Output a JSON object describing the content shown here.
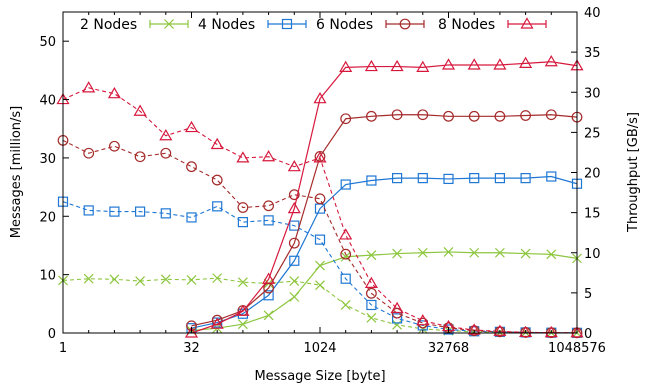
{
  "chart_data": {
    "type": "line",
    "title": "",
    "xlabel": "Message Size [byte]",
    "ylabel": "Messages [million/s]",
    "y2label": "Throughput [GB/s]",
    "x_scale": "log2",
    "xlim": [
      1,
      1048576
    ],
    "ylim": [
      0,
      55
    ],
    "y2lim": [
      0,
      40
    ],
    "x_ticks": [
      1,
      32,
      1024,
      32768,
      1048576
    ],
    "x_tick_labels": [
      "1",
      "32",
      "1024",
      "32768",
      "1048576"
    ],
    "y_ticks": [
      0,
      10,
      20,
      30,
      40,
      50
    ],
    "y2_ticks": [
      0,
      5,
      10,
      15,
      20,
      25,
      30,
      35,
      40
    ],
    "legend_position": "top",
    "grid": false,
    "x": [
      1,
      2,
      4,
      8,
      16,
      32,
      64,
      128,
      256,
      512,
      1024,
      2048,
      4096,
      8192,
      16384,
      32768,
      65536,
      131072,
      262144,
      524288,
      1048576
    ],
    "series": [
      {
        "name": "2 Nodes",
        "color": "#8dc63f",
        "marker": "x",
        "rate": [
          9.0,
          9.3,
          9.2,
          8.9,
          9.2,
          9.1,
          9.4,
          8.7,
          8.5,
          8.9,
          8.2,
          4.8,
          2.6,
          1.4,
          0.7,
          0.4,
          0.2,
          0.1,
          0.1,
          0.05,
          0.03
        ],
        "throughput": [
          null,
          null,
          null,
          null,
          null,
          0.3,
          0.6,
          1.1,
          2.2,
          4.5,
          8.4,
          9.5,
          9.7,
          9.9,
          10.0,
          10.1,
          10.0,
          10.0,
          9.9,
          9.8,
          9.3
        ]
      },
      {
        "name": "4 Nodes",
        "color": "#1f77d4",
        "marker": "square",
        "rate": [
          22.5,
          21.0,
          20.8,
          20.8,
          20.5,
          19.8,
          21.7,
          19.0,
          19.3,
          18.4,
          16.0,
          9.3,
          4.8,
          2.5,
          1.3,
          0.6,
          0.3,
          0.2,
          0.1,
          0.05,
          0.03
        ],
        "throughput": [
          null,
          null,
          null,
          null,
          null,
          0.6,
          1.3,
          2.4,
          4.7,
          9.0,
          15.5,
          18.5,
          19.0,
          19.3,
          19.3,
          19.2,
          19.3,
          19.3,
          19.3,
          19.5,
          18.6
        ]
      },
      {
        "name": "6 Nodes",
        "color": "#a52a2a",
        "marker": "circle",
        "rate": [
          33.0,
          30.8,
          32.0,
          30.2,
          30.8,
          28.5,
          26.2,
          21.5,
          21.8,
          23.7,
          23.0,
          13.5,
          6.8,
          3.4,
          1.7,
          0.9,
          0.4,
          0.2,
          0.1,
          0.05,
          0.03
        ],
        "throughput": [
          null,
          null,
          null,
          null,
          null,
          0.9,
          1.6,
          2.8,
          5.6,
          11.2,
          22.0,
          26.7,
          27.0,
          27.2,
          27.2,
          27.0,
          27.0,
          27.0,
          27.1,
          27.2,
          26.9
        ]
      },
      {
        "name": "8 Nodes",
        "color": "#d6183c",
        "marker": "triangle",
        "rate": [
          40.0,
          42.0,
          41.0,
          38.0,
          33.8,
          35.2,
          32.3,
          30.0,
          30.2,
          28.5,
          30.0,
          16.8,
          8.5,
          4.2,
          2.1,
          1.1,
          0.5,
          0.3,
          0.1,
          0.07,
          0.03
        ],
        "throughput": [
          null,
          null,
          null,
          null,
          null,
          0.0,
          1.1,
          2.7,
          6.7,
          15.5,
          29.2,
          33.1,
          33.2,
          33.2,
          33.1,
          33.4,
          33.4,
          33.4,
          33.6,
          33.8,
          33.3
        ]
      }
    ]
  }
}
